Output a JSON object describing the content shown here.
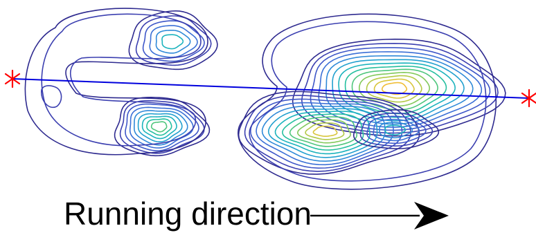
{
  "caption": "Running direction",
  "colors": {
    "levels": [
      "#2e2a8f",
      "#3b3fb0",
      "#3d56c8",
      "#3a6fd6",
      "#2f89d8",
      "#22a0cf",
      "#1bb3bd",
      "#25bf9f",
      "#4fc67d",
      "#82c95b",
      "#b3c946",
      "#d8c53b",
      "#f0bd34",
      "#f7a92e"
    ],
    "marker": "#ff0000",
    "track_line": "#0000dd",
    "arrow": "#000000"
  },
  "markers": {
    "icon": "asterisk"
  }
}
